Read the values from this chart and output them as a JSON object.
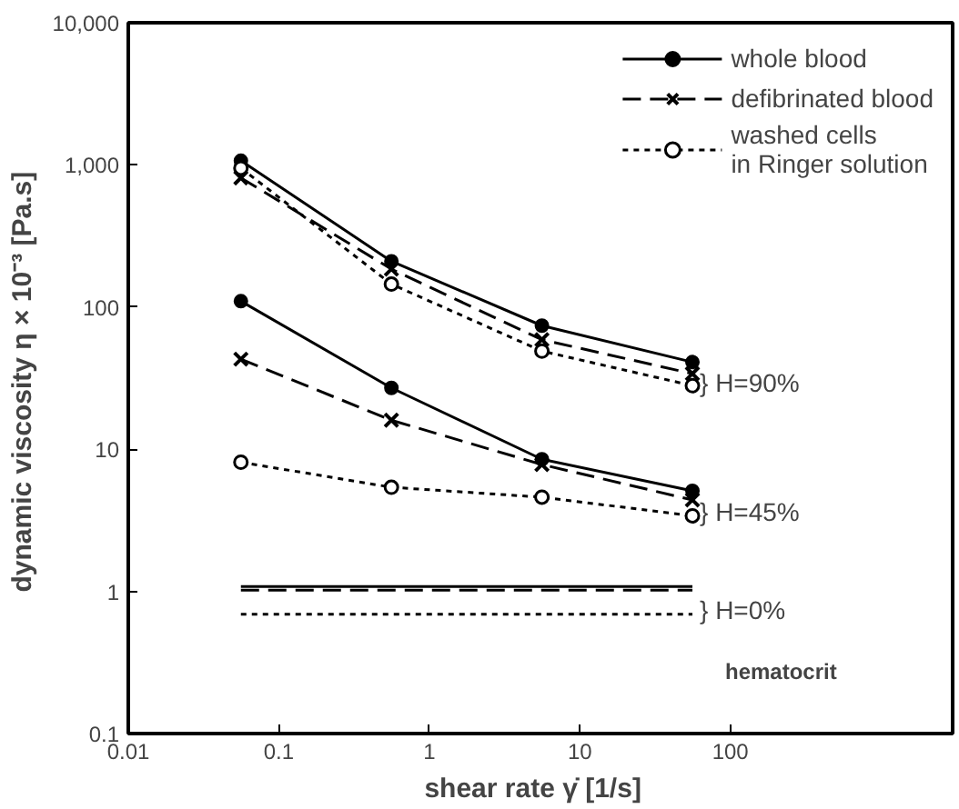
{
  "chart_data": {
    "type": "line",
    "xlabel": "shear rate  γ̇  [1/s]",
    "ylabel": "dynamic viscosity  η × 10⁻³ [Pa.s]",
    "log": "xy",
    "grid": false,
    "legend": "top right",
    "xlim": [
      0.01,
      3000
    ],
    "ylim": [
      0.1,
      10000
    ],
    "xticks": [
      0.01,
      0.1,
      1,
      10,
      100
    ],
    "yticks": [
      0.1,
      1,
      10,
      100,
      {
        "value": 1000,
        "label": "1,000"
      },
      {
        "value": 10000,
        "label": "10,000"
      }
    ],
    "x": [
      0.056,
      0.56,
      5.6,
      56
    ],
    "series": [
      {
        "name": "whole blood",
        "color": "#000000",
        "marker": "circle",
        "line_style": "solid",
        "values": [
          1070,
          210,
          74,
          41
        ]
      },
      {
        "name": "defibrinated blood",
        "color": "#000000",
        "marker": "cross",
        "line_style": "dashed",
        "values": [
          810,
          185,
          59,
          34
        ]
      },
      {
        "name": "washed cells\nin Ringer solution",
        "color": "#000000",
        "marker": "circle_open",
        "line_style": "dotted",
        "values": [
          950,
          145,
          49,
          28
        ]
      },
      {
        "color": "#000000",
        "marker": "circle",
        "line_style": "solid",
        "values": [
          110,
          27,
          8.5,
          5.1
        ]
      },
      {
        "color": "#000000",
        "marker": "cross",
        "line_style": "dashed",
        "values": [
          43,
          16,
          7.8,
          4.4
        ]
      },
      {
        "color": "#000000",
        "marker": "circle_open",
        "line_style": "dotted",
        "values": [
          8.1,
          5.4,
          4.6,
          3.4
        ]
      },
      {
        "color": "#000000",
        "marker": "none",
        "line_style": "solid",
        "values": [
          1.08,
          1.08,
          1.08,
          1.08
        ]
      },
      {
        "color": "#000000",
        "marker": "none",
        "line_style": "dashed",
        "values": [
          1.02,
          1.02,
          1.02,
          1.02
        ]
      },
      {
        "color": "#000000",
        "marker": "none",
        "line_style": "dotted",
        "values": [
          0.69,
          0.69,
          0.69,
          0.69
        ]
      }
    ],
    "annotations": [
      "} H=90%",
      "} H=45%",
      "} H=0%",
      "hematocrit"
    ]
  }
}
